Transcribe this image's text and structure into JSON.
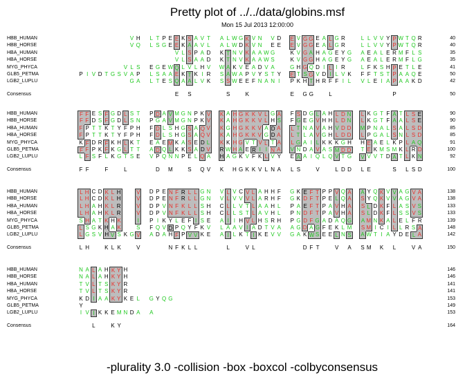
{
  "title": "Pretty plot of ../../data/globins.msf",
  "date": "Mon 15 Jul 2013 12:00:00",
  "footer": "-plurality 3.0 -collision -box -boxcol -colbyconsensus",
  "colors": {
    "identical": "#e8302c",
    "similar": "#1ec81e",
    "other": "#000000",
    "box_fill": "#bdbdbd",
    "box_border": "#333333"
  },
  "blocks": [
    {
      "rows": [
        {
          "name": "HBB_HUMAN",
          "seq": "--------VHLTPEEKSAVTALWGKVN-VDEVGGEALGR-LLVVYPWTQR",
          "end": "40"
        },
        {
          "name": "HBB_HORSE",
          "seq": "--------VQLSGEEKAAVLALWDKVN-EEEVGGEALGR-LLVVYPWTQR",
          "end": "40"
        },
        {
          "name": "HBA_HUMAN",
          "seq": "--------------VLSPADKTNVKAAWG-KVGAHAGEYGAEALERMFLS",
          "end": "35"
        },
        {
          "name": "HBA_HORSE",
          "seq": "--------------VLSAADKTNVKAAWS-KVGGHAGEYGAEALERMFLG",
          "end": "35"
        },
        {
          "name": "MYG_PHYCA",
          "seq": "-------VLSEGEWQLVLHVWAKVEADVA-GHGQDILIR-LFKSHPETLE",
          "end": "41"
        },
        {
          "name": "GLB5_PETMA",
          "seq": "PIVDTGSVAPLSAAEKTKIRSAWAPVYSTYETSGVDILVKFFTSTPAAQE",
          "end": "50"
        },
        {
          "name": "LGB2_LUPLU",
          "seq": "--------GALTESQAALVKSSWEEFNANIPKHTHRFFILVLEIAPAAKD",
          "end": "42"
        }
      ],
      "consensus": {
        "name": "Consensus",
        "seq": "--------------E-S----S--K-----E-GG--L--------P----",
        "end": "50"
      }
    },
    {
      "rows": [
        {
          "name": "HBB_HUMAN",
          "seq": "FFESFGDLSTPDAVMGNPKVKAHGKKVLGAFSDGLAHLDNLKGTFATLSE",
          "end": "90"
        },
        {
          "name": "HBB_HORSE",
          "seq": "FFDSFGDLSNPGAVMGNPKVKAHGKKVLHSFGEGVHHLDNLKGTFAALSE",
          "end": "90"
        },
        {
          "name": "HBA_HUMAN",
          "seq": "FPTTKTYFPHFDLSHGSAQVKGHGKKVADALTNAVAHVDDMPNALSALSD",
          "end": "85"
        },
        {
          "name": "HBA_HORSE",
          "seq": "FPTTKTYFPHFDLSHGSAQVKAHGKKVGDALTLAVGHLDDLPGALSNLSD",
          "end": "85"
        },
        {
          "name": "MYG_PHYCA",
          "seq": "KFDRFKHLKTEAEMKASEDLKKHGVTVLTALGAILKKKGHHEAELKPLAQ",
          "end": "91"
        },
        {
          "name": "GLB5_PETMA",
          "seq": "FFPKFKGLTTADQLKKSADVRWHAERIINAVNDAVASMDDTEKMSMKLRD",
          "end": "100"
        },
        {
          "name": "LGB2_LUPLU",
          "seq": "LFSFLKGTSEVPQNNPELQAHAGKVFKLVYEAAIQLQVTGVVVTDATLKN",
          "end": "92"
        }
      ],
      "consensus": {
        "name": "Consensus",
        "seq": "FF--F--L---D-M--S-QVK-HGKKVLNALS--V--LDDLE---S-LSD",
        "end": "100"
      }
    },
    {
      "rows": [
        {
          "name": "HBB_HUMAN",
          "seq": "LHCDKLH--VDPENFRLLGNVLVCVLAHHFGKEFTPPVQAAYQKVVAGVA",
          "end": "138"
        },
        {
          "name": "HBB_HORSE",
          "seq": "LHCDKLH--VDPENFRLLGNVLVVVLARHFGKDFTPELQASYQKVVAGVA",
          "end": "138"
        },
        {
          "name": "HBA_HUMAN",
          "seq": "LHAHKLR--VDPVNFKLLSHCLLVTLAAHLPAEFTPAVHASLDKFLASVS",
          "end": "133"
        },
        {
          "name": "HBA_HORSE",
          "seq": "LHAHKLR--VDPVNFKLLSHCLLSTLAVHLPNDFTPAVHASLDKFLSSVS",
          "end": "133"
        },
        {
          "name": "MYG_PHYCA",
          "seq": "SHATKHK--IPIKYLEFISEAIIHVLHSRHPGDFGADAQGAMNKALELFR",
          "end": "139"
        },
        {
          "name": "GLB5_PETMA",
          "seq": "LSGKHAK--SFQVDPQYFKVLAAVIADTVAAGDAGFEKLMSMICILLRSA",
          "end": "148"
        },
        {
          "name": "LGB2_LUPLU",
          "seq": "LGSVHVSKGVADAHFPVVKEAILKTIKEVVGAKWSEELNSAWTIAYDELA",
          "end": "142"
        }
      ],
      "consensus": {
        "name": "Consensus",
        "seq": "LH--KLK--V---NFKLL---L--VL------DFT--V-ASM-K-L--VA",
        "end": "150"
      }
    },
    {
      "rows": [
        {
          "name": "HBB_HUMAN",
          "seq": "NALAHKYH",
          "end": "146"
        },
        {
          "name": "HBB_HORSE",
          "seq": "NALAHKYH",
          "end": "146"
        },
        {
          "name": "HBA_HUMAN",
          "seq": "TVLTSKYR",
          "end": "141"
        },
        {
          "name": "HBA_HORSE",
          "seq": "TVLTSKYR",
          "end": "141"
        },
        {
          "name": "MYG_PHYCA",
          "seq": "KDIAAKYKELGYQG",
          "end": "153"
        },
        {
          "name": "GLB5_PETMA",
          "seq": "Y",
          "end": "149"
        },
        {
          "name": "LGB2_LUPLU",
          "seq": "IVIKKEMNDAA",
          "end": "153"
        }
      ],
      "consensus": {
        "name": "Consensus",
        "seq": "--L--KY",
        "end": "164"
      }
    }
  ]
}
